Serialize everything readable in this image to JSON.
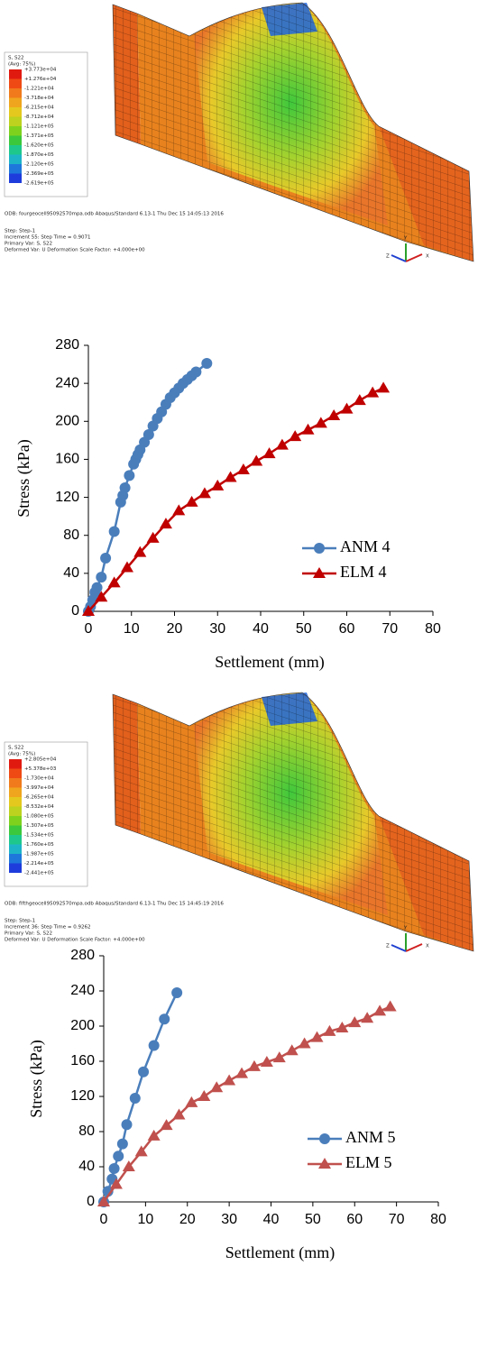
{
  "fem_images": [
    {
      "legend_title": "S, S22",
      "legend_subtitle": "(Avg: 75%)",
      "levels": [
        "+3.773e+04",
        "+1.276e+04",
        "-1.221e+04",
        "-3.718e+04",
        "-6.215e+04",
        "-8.712e+04",
        "-1.121e+05",
        "-1.371e+05",
        "-1.620e+05",
        "-1.870e+05",
        "-2.120e+05",
        "-2.369e+05",
        "-2.619e+05"
      ],
      "info": [
        "ODB: fourgeocell95092570mpa.odb    Abaqus/Standard 6.13-1    Thu Dec 15 14:05:13 2016",
        "Step: Step-1",
        "Increment     55: Step Time =    0.9071",
        "Primary Var: S, S22",
        "Deformed Var: U   Deformation Scale Factor: +4.000e+00"
      ],
      "triad": [
        "Y",
        "Z",
        "X"
      ]
    },
    {
      "legend_title": "S, S22",
      "legend_subtitle": "(Avg: 75%)",
      "levels": [
        "+2.805e+04",
        "+5.378e+03",
        "-1.730e+04",
        "-3.997e+04",
        "-6.265e+04",
        "-8.532e+04",
        "-1.080e+05",
        "-1.307e+05",
        "-1.534e+05",
        "-1.760e+05",
        "-1.987e+05",
        "-2.214e+05",
        "-2.441e+05"
      ],
      "info": [
        "ODB: fifthgeocell95092570mpa.odb    Abaqus/Standard 6.13-1    Thu Dec 15 14:45:19 2016",
        "Step: Step-1",
        "Increment     36: Step Time =    0.9262",
        "Primary Var: S, S22",
        "Deformed Var: U   Deformation Scale Factor: +4.000e+00"
      ],
      "triad": [
        "Y",
        "Z",
        "X"
      ]
    }
  ],
  "chart_data": [
    {
      "type": "line",
      "x_label": "Settlement (mm)",
      "y_label": "Stress (kPa)",
      "xlim": [
        0,
        80
      ],
      "xticks": [
        0,
        10,
        20,
        30,
        40,
        50,
        60,
        70,
        80
      ],
      "ylim": [
        0,
        280
      ],
      "yticks": [
        0,
        40,
        80,
        120,
        160,
        200,
        240,
        280
      ],
      "grid": false,
      "legend": "lower right",
      "series": [
        {
          "name": "ANM 4",
          "color": "#4a7ebb",
          "marker": "circle",
          "x": [
            0,
            0.5,
            1,
            1.5,
            2,
            3,
            4,
            6,
            7.5,
            8,
            8.5,
            9.5,
            10.5,
            11,
            11.5,
            12,
            13,
            14,
            15,
            16,
            17,
            18,
            19,
            20,
            21,
            22,
            23,
            24,
            25,
            27.5
          ],
          "values": [
            0,
            5,
            12,
            20,
            25,
            36,
            56,
            84,
            115,
            122,
            130,
            143,
            155,
            160,
            165,
            170,
            178,
            186,
            195,
            203,
            210,
            218,
            225,
            230,
            235,
            240,
            244,
            248,
            252,
            261
          ]
        },
        {
          "name": "ELM 4",
          "color": "#c00000",
          "marker": "triangle",
          "x": [
            0,
            3,
            6,
            9,
            12,
            15,
            18,
            21,
            24,
            27,
            30,
            33,
            36,
            39,
            42,
            45,
            48,
            51,
            54,
            57,
            60,
            63,
            66,
            68.5
          ],
          "values": [
            0,
            15,
            30,
            46,
            62,
            77,
            92,
            106,
            115,
            124,
            132,
            141,
            149,
            158,
            166,
            175,
            184,
            191,
            198,
            206,
            213,
            222,
            230,
            235
          ]
        }
      ]
    },
    {
      "type": "line",
      "x_label": "Settlement (mm)",
      "y_label": "Stress (kPa)",
      "xlim": [
        0,
        80
      ],
      "xticks": [
        0,
        10,
        20,
        30,
        40,
        50,
        60,
        70,
        80
      ],
      "ylim": [
        0,
        280
      ],
      "yticks": [
        0,
        40,
        80,
        120,
        160,
        200,
        240,
        280
      ],
      "grid": false,
      "legend": "lower right",
      "series": [
        {
          "name": "ANM 5",
          "color": "#4a7ebb",
          "marker": "circle",
          "x": [
            0,
            1,
            2,
            2.5,
            3.5,
            4.5,
            5.5,
            7.5,
            9.5,
            12,
            14.5,
            17.5
          ],
          "values": [
            0,
            12,
            26,
            38,
            52,
            66,
            88,
            118,
            148,
            178,
            208,
            238
          ]
        },
        {
          "name": "ELM 5",
          "color": "#c0504d",
          "marker": "triangle",
          "x": [
            0,
            3,
            6,
            9,
            12,
            15,
            18,
            21,
            24,
            27,
            30,
            33,
            36,
            39,
            42,
            45,
            48,
            51,
            54,
            57,
            60,
            63,
            66,
            68.5
          ],
          "values": [
            0,
            20,
            40,
            57,
            75,
            87,
            99,
            113,
            120,
            130,
            138,
            146,
            154,
            159,
            164,
            172,
            180,
            187,
            194,
            198,
            204,
            209,
            217,
            222
          ]
        }
      ]
    }
  ]
}
